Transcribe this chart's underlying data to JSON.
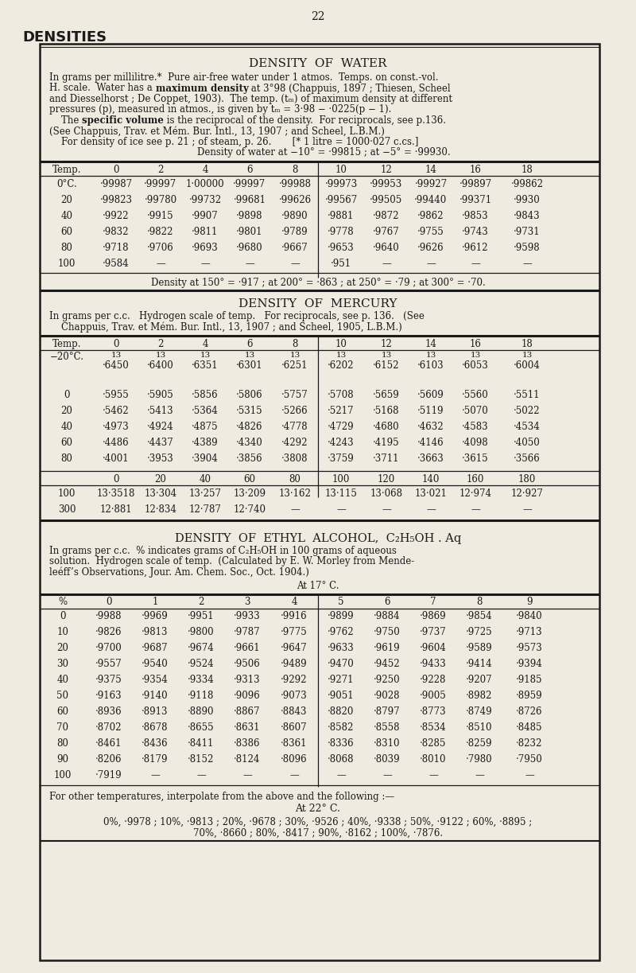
{
  "page_number": "22",
  "page_heading": "DENSITIES",
  "bg_color": "#f0ebe0",
  "text_color": "#1a1a1a",
  "water_title": "DENSITY  OF  WATER",
  "water_intro_lines": [
    {
      "text": "In grams per millilitre.*  Pure air-free water under 1 atmos.  Temps. on const.-vol.",
      "indent": 60
    },
    {
      "text": "H. scale.  Water has a |maximum density| at 3°98 (Chappuis, 1897 ; Thiesen, Scheel",
      "indent": 60,
      "bold_span": "maximum density"
    },
    {
      "text": "and Diesselhorst ; De Coppet, 1903).  The temp. (tₘ) of maximum density at different",
      "indent": 60
    },
    {
      "text": "pressures (p), measured in atmos., is given by tₘ = 3·98 − ·0225(p − 1).",
      "indent": 60
    },
    {
      "text": "    The |specific volume| is the reciprocal of the density.  For reciprocals, see p.136.",
      "indent": 60,
      "bold_span": "specific volume"
    },
    {
      "text": "(See Chappuis, Trav. et Mém. Bur. Intl., 13, 1907 ; and Scheel, L.B.M.)",
      "indent": 60
    },
    {
      "text": "    For density of ice see p. 21 ; of steam, p. 26.       [* 1 litre = 1000·027 c.cs.]",
      "indent": 60
    },
    {
      "text": "    Density of water at −10° = ·99815 ; at −5° = ·99930.",
      "indent": 60,
      "center": true
    }
  ],
  "water_col_headers": [
    "Temp.",
    "0",
    "2",
    "4",
    "6",
    "8",
    "10",
    "12",
    "14",
    "16",
    "18"
  ],
  "water_rows": [
    [
      "0°C.",
      "·99987",
      "·99997",
      "1·00000",
      "·99997",
      "·99988",
      "·99973",
      "·99953",
      "·99927",
      "·99897",
      "·99862"
    ],
    [
      "20",
      "·99823",
      "·99780",
      "·99732",
      "·99681",
      "·99626",
      "·99567",
      "·99505",
      "·99440",
      "·99371",
      "·9930"
    ],
    [
      "40",
      "·9922",
      "·9915",
      "·9907",
      "·9898",
      "·9890",
      "·9881",
      "·9872",
      "·9862",
      "·9853",
      "·9843"
    ],
    [
      "60",
      "·9832",
      "·9822",
      "·9811",
      "·9801",
      "·9789",
      "·9778",
      "·9767",
      "·9755",
      "·9743",
      "·9731"
    ],
    [
      "80",
      "·9718",
      "·9706",
      "·9693",
      "·9680",
      "·9667",
      "·9653",
      "·9640",
      "·9626",
      "·9612",
      "·9598"
    ],
    [
      "100",
      "·9584",
      "—",
      "—",
      "—",
      "—",
      "·951",
      "—",
      "—",
      "—",
      "—"
    ]
  ],
  "water_footer": "Density at 150° = ·917 ; at 200° = ·863 ; at 250° = ·79 ; at 300° = ·70.",
  "mercury_title": "DENSITY  OF  MERCURY",
  "mercury_intro_lines": [
    "In grams per c.c.   Hydrogen scale of temp.   For reciprocals, see p. 136.   (See",
    "    Chappuis, Trav. et Mém. Bur. Intl., 13, 1907 ; and Scheel, 1905, L.B.M.)"
  ],
  "mercury_col_headers": [
    "Temp.",
    "0",
    "2",
    "4",
    "6",
    "8",
    "10",
    "12",
    "14",
    "16",
    "18"
  ],
  "mercury_13_row": [
    "−20°C.",
    "13",
    "13",
    "13",
    "13",
    "13",
    "13",
    "13",
    "13",
    "13",
    "13"
  ],
  "mercury_data_rows": [
    [
      "−20°C.",
      "·6450",
      "·6400",
      "·6351",
      "·6301",
      "·6251",
      "·6202",
      "·6152",
      "·6103",
      "·6053",
      "·6004"
    ],
    [
      "0",
      "·5955",
      "·5905",
      "·5856",
      "·5806",
      "·5757",
      "·5708",
      "·5659",
      "·5609",
      "·5560",
      "·5511"
    ],
    [
      "20",
      "·5462",
      "·5413",
      "·5364",
      "·5315",
      "·5266",
      "·5217",
      "·5168",
      "·5119",
      "·5070",
      "·5022"
    ],
    [
      "40",
      "·4973",
      "·4924",
      "·4875",
      "·4826",
      "·4778",
      "·4729",
      "·4680",
      "·4632",
      "·4583",
      "·4534"
    ],
    [
      "60",
      "·4486",
      "·4437",
      "·4389",
      "·4340",
      "·4292",
      "·4243",
      "·4195",
      "·4146",
      "·4098",
      "·4050"
    ],
    [
      "80",
      "·4001",
      "·3953",
      "·3904",
      "·3856",
      "·3808",
      "·3759",
      "·3711",
      "·3663",
      "·3615",
      "·3566"
    ]
  ],
  "mercury_col_headers2": [
    "",
    "0",
    "20",
    "40",
    "60",
    "80",
    "100",
    "120",
    "140",
    "160",
    "180"
  ],
  "mercury_rows2": [
    [
      "100",
      "13·3518",
      "13·304",
      "13·257",
      "13·209",
      "13·162",
      "13·115",
      "13·068",
      "13·021",
      "12·974",
      "12·927"
    ],
    [
      "300",
      "12·881",
      "12·834",
      "12·787",
      "12·740",
      "—",
      "—",
      "—",
      "—",
      "—",
      "—"
    ]
  ],
  "alcohol_title": "DENSITY  OF  ETHYL  ALCOHOL,  C₂H₅OH . Aq",
  "alcohol_intro_lines": [
    "In grams per c.c.  % indicates grams of C₂H₅OH in 100 grams of aqueous",
    "solution.  Hydrogen scale of temp.  (Calculated by E. W. Morley from Mende-",
    "leéff’s Observations, Jour. Am. Chem. Soc., Oct. 1904.)"
  ],
  "alcohol_subtitle": "At 17° C.",
  "alcohol_col_headers": [
    "%",
    "0",
    "1",
    "2",
    "3",
    "4",
    "5",
    "6",
    "7",
    "8",
    "9"
  ],
  "alcohol_rows": [
    [
      "0",
      "·9988",
      "·9969",
      "·9951",
      "·9933",
      "·9916",
      "·9899",
      "·9884",
      "·9869",
      "·9854",
      "·9840"
    ],
    [
      "10",
      "·9826",
      "·9813",
      "·9800",
      "·9787",
      "·9775",
      "·9762",
      "·9750",
      "·9737",
      "·9725",
      "·9713"
    ],
    [
      "20",
      "·9700",
      "·9687",
      "·9674",
      "·9661",
      "·9647",
      "·9633",
      "·9619",
      "·9604",
      "·9589",
      "·9573"
    ],
    [
      "30",
      "·9557",
      "·9540",
      "·9524",
      "·9506",
      "·9489",
      "·9470",
      "·9452",
      "·9433",
      "·9414",
      "·9394"
    ],
    [
      "40",
      "·9375",
      "·9354",
      "·9334",
      "·9313",
      "·9292",
      "·9271",
      "·9250",
      "·9228",
      "·9207",
      "·9185"
    ],
    [
      "50",
      "·9163",
      "·9140",
      "·9118",
      "·9096",
      "·9073",
      "·9051",
      "·9028",
      "·9005",
      "·8982",
      "·8959"
    ],
    [
      "60",
      "·8936",
      "·8913",
      "·8890",
      "·8867",
      "·8843",
      "·8820",
      "·8797",
      "·8773",
      "·8749",
      "·8726"
    ],
    [
      "70",
      "·8702",
      "·8678",
      "·8655",
      "·8631",
      "·8607",
      "·8582",
      "·8558",
      "·8534",
      "·8510",
      "·8485"
    ],
    [
      "80",
      "·8461",
      "·8436",
      "·8411",
      "·8386",
      "·8361",
      "·8336",
      "·8310",
      "·8285",
      "·8259",
      "·8232"
    ],
    [
      "90",
      "·8206",
      "·8179",
      "·8152",
      "·8124",
      "·8096",
      "·8068",
      "·8039",
      "·8010",
      "·7980",
      "·7950"
    ],
    [
      "100",
      "·7919",
      "—",
      "—",
      "—",
      "—",
      "—",
      "—",
      "—",
      "—",
      "—"
    ]
  ],
  "alcohol_footer1": "For other temperatures, interpolate from the above and the following :—",
  "alcohol_footer2": "At 22° C.",
  "alcohol_footer3": "0%, ·9978 ; 10%, ·9813 ; 20%, ·9678 ; 30%, ·9526 ; 40⁠%, ·9338 ; 50%, ·9122 ; 60%, ·8895 ;",
  "alcohol_footer4": "70%, ·8660 ; 80%, ·8417 ; 90%, ·8162 ; 100%, ·7876."
}
